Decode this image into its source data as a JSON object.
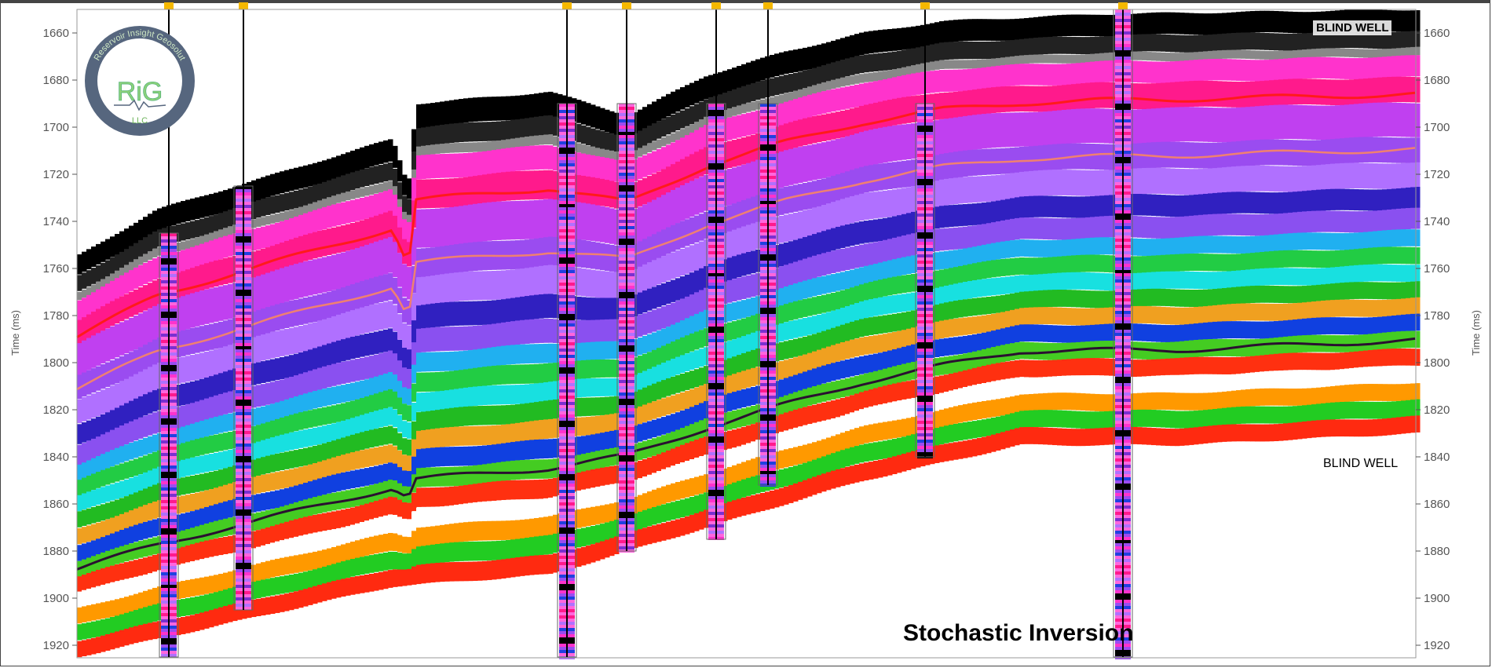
{
  "chart_data": {
    "type": "heatmap",
    "title": "Stochastic Inversion",
    "ylabel": "Time (ms)",
    "ylabel_right": "Time (ms)",
    "ylim": [
      1650,
      1925
    ],
    "yticks": [
      1660,
      1680,
      1700,
      1720,
      1740,
      1760,
      1780,
      1800,
      1820,
      1840,
      1860,
      1880,
      1900,
      1920
    ],
    "y_inverted": true,
    "annotations": [
      "BLIND WELL",
      "BLIND WELL"
    ],
    "well_count": 8,
    "well_marker_color": "#f5b800",
    "horizon_colors": [
      "#ff1a1a",
      "#f08070",
      "#2a1030"
    ]
  },
  "logo": {
    "main": "RiG",
    "sub": "LLC",
    "ring": "Reservoir Insight Geosolutions"
  }
}
